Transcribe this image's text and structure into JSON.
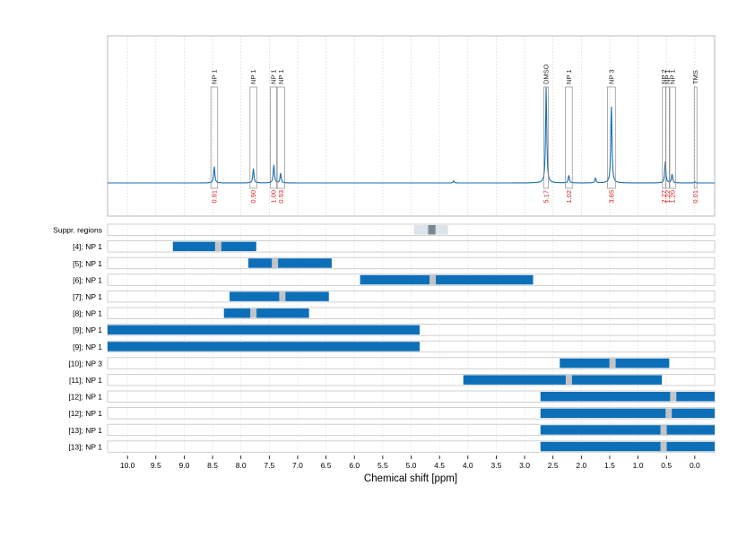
{
  "chart_data": {
    "type": "nmr-spectrum-with-range-bars",
    "xlabel": "Chemical shift [ppm]",
    "xlim": [
      10.35,
      -0.35
    ],
    "x_ticks": [
      "10.0",
      "9.5",
      "9.0",
      "8.5",
      "8.0",
      "7.5",
      "7.0",
      "6.5",
      "6.0",
      "5.5",
      "5.0",
      "4.5",
      "4.0",
      "3.5",
      "3.0",
      "2.5",
      "2.0",
      "1.5",
      "1.0",
      "0.5",
      "0.0"
    ],
    "gridlines": true,
    "colors": {
      "spectrum": "#1a6fb0",
      "bar": "#0d6fb8",
      "integral_text": "#d62020",
      "highlight": "#c0c4c8",
      "supp_fill": "#dde3ea",
      "supp_core": "#7a8896"
    },
    "spectrum_peaks": [
      {
        "ppm": 8.47,
        "height": 0.17
      },
      {
        "ppm": 7.78,
        "height": 0.15
      },
      {
        "ppm": 7.42,
        "height": 0.19
      },
      {
        "ppm": 7.3,
        "height": 0.1
      },
      {
        "ppm": 4.25,
        "height": 0.02
      },
      {
        "ppm": 2.62,
        "height": 1.0
      },
      {
        "ppm": 2.22,
        "height": 0.08
      },
      {
        "ppm": 1.75,
        "height": 0.05
      },
      {
        "ppm": 1.47,
        "height": 0.82
      },
      {
        "ppm": 0.52,
        "height": 0.22
      },
      {
        "ppm": 0.4,
        "height": 0.09
      },
      {
        "ppm": 0.0,
        "height": 0.01
      }
    ],
    "annotations": [
      {
        "label": "NP 1",
        "ppm_from": 8.53,
        "ppm_to": 8.41,
        "integral": "0.91"
      },
      {
        "label": "NP 1",
        "ppm_from": 7.84,
        "ppm_to": 7.72,
        "integral": "0.90"
      },
      {
        "label": "NP 1",
        "ppm_from": 7.48,
        "ppm_to": 7.37,
        "integral": "1.00"
      },
      {
        "label": "NP 1",
        "ppm_from": 7.36,
        "ppm_to": 7.23,
        "integral": "0.93"
      },
      {
        "label": "DMSO",
        "ppm_from": 2.66,
        "ppm_to": 2.58,
        "integral": "5.17"
      },
      {
        "label": "NP 1",
        "ppm_from": 2.28,
        "ppm_to": 2.16,
        "integral": "1.02"
      },
      {
        "label": "NP 3",
        "ppm_from": 1.54,
        "ppm_to": 1.4,
        "integral": "3.65"
      },
      {
        "label": "NP 2",
        "ppm_from": 0.57,
        "ppm_to": 0.51,
        "integral": "2.27"
      },
      {
        "label": "NP 1",
        "ppm_from": 0.51,
        "ppm_to": 0.45,
        "integral": "1.22"
      },
      {
        "label": "NP 1",
        "ppm_from": 0.44,
        "ppm_to": 0.34,
        "integral": "1.20"
      },
      {
        "label": "TMS",
        "ppm_from": 0.01,
        "ppm_to": -0.01,
        "integral": "0.01"
      }
    ],
    "suppressed_region": {
      "label": "Suppr. regions",
      "ppm_from": 4.95,
      "ppm_to": 4.35,
      "core_from": 4.7,
      "core_to": 4.57
    },
    "range_bars": [
      {
        "label": "[4]; NP 1",
        "ppm_from": 9.2,
        "ppm_to": 7.73,
        "marker": 8.4
      },
      {
        "label": "[5]; NP 1",
        "ppm_from": 7.87,
        "ppm_to": 6.4,
        "marker": 7.4
      },
      {
        "label": "[6]; NP 1",
        "ppm_from": 5.9,
        "ppm_to": 2.85,
        "marker": 4.62
      },
      {
        "label": "[7]; NP 1",
        "ppm_from": 8.2,
        "ppm_to": 6.45,
        "marker": 7.27
      },
      {
        "label": "[8]; NP 1",
        "ppm_from": 8.3,
        "ppm_to": 6.8,
        "marker": 7.78
      },
      {
        "label": "[9]; NP 1",
        "ppm_from": 10.35,
        "ppm_to": 4.85,
        "marker": null
      },
      {
        "label": "[9]; NP 1",
        "ppm_from": 10.35,
        "ppm_to": 4.85,
        "marker": null
      },
      {
        "label": "[10]; NP 3",
        "ppm_from": 2.38,
        "ppm_to": 0.45,
        "marker": 1.45
      },
      {
        "label": "[11]; NP 1",
        "ppm_from": 4.08,
        "ppm_to": 0.58,
        "marker": 2.22
      },
      {
        "label": "[12]; NP 1",
        "ppm_from": 2.72,
        "ppm_to": -0.35,
        "marker": 0.38
      },
      {
        "label": "[12]; NP 1",
        "ppm_from": 2.72,
        "ppm_to": -0.35,
        "marker": 0.46
      },
      {
        "label": "[13]; NP 1",
        "ppm_from": 2.72,
        "ppm_to": -0.35,
        "marker": 0.55
      },
      {
        "label": "[13]; NP 1",
        "ppm_from": 2.72,
        "ppm_to": -0.35,
        "marker": 0.55
      }
    ]
  }
}
